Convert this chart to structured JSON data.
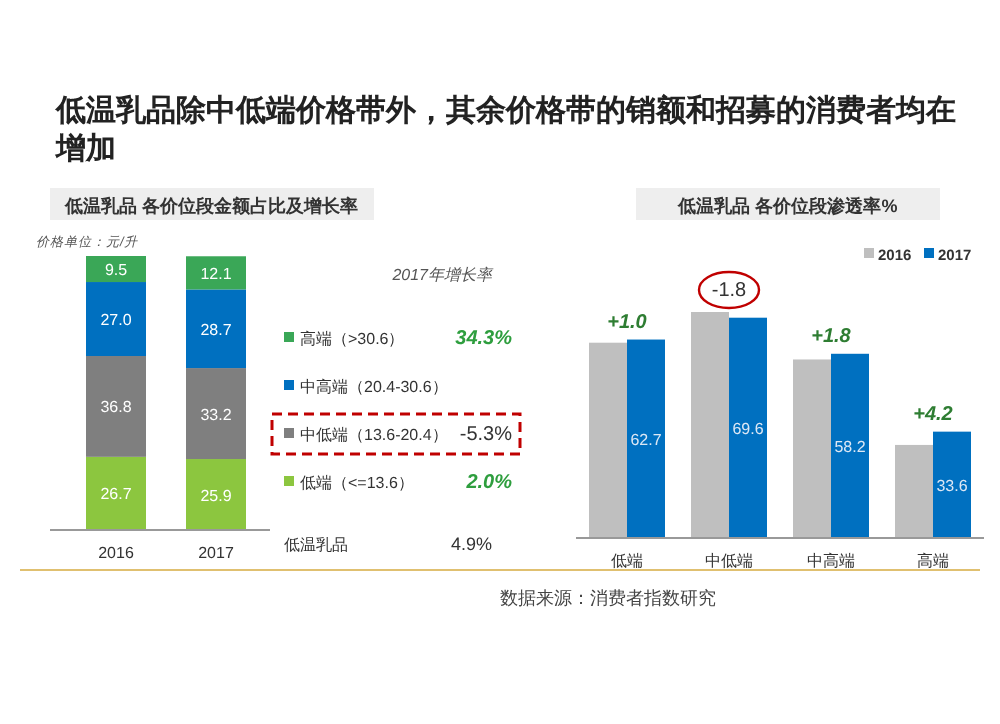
{
  "chart_data": [
    {
      "type": "other",
      "title": "低温乳品除中低端价格带外，其余价格带的销额和招募的消费者均在增加",
      "annotations": [
        "数据来源：消费者指数研究"
      ]
    },
    {
      "type": "bar",
      "stacked": true,
      "title": "低温乳品 各价位段金额占比及增长率",
      "categories": [
        "2016",
        "2017"
      ],
      "data_labels": true,
      "legend": "right",
      "series": [
        {
          "name": "低端（<=13.6）",
          "color": "#8cc63f",
          "values": [
            26.7,
            25.9
          ]
        },
        {
          "name": "中低端（13.6-20.4）",
          "color": "#7f7f7f",
          "values": [
            36.8,
            33.2
          ]
        },
        {
          "name": "中高端（20.4-30.6）",
          "color": "#0070c0",
          "values": [
            27.0,
            28.7
          ],
          "value_labels": [
            "27.0",
            "28.7"
          ]
        },
        {
          "name": "高端（>30.6）",
          "color": "#3aa757",
          "values": [
            9.5,
            12.1
          ]
        }
      ],
      "annotations": [
        "价格单位：元/升",
        "2017年增长率",
        "2.0%",
        "-5.3%",
        null,
        "34.3%",
        "低温乳品",
        "4.9%"
      ]
    },
    {
      "type": "bar",
      "title": "低温乳品 各价位段渗透率%",
      "categories": [
        "低端",
        "中低端",
        "中高端",
        "高端"
      ],
      "legend": "top right",
      "series": [
        {
          "name": "2016",
          "color": "#bfbfbf",
          "values": [
            61.7,
            71.4,
            56.4,
            29.4
          ]
        },
        {
          "name": "2017",
          "color": "#0070c0",
          "values": [
            62.7,
            69.6,
            58.2,
            33.6
          ],
          "value_labels": [
            "62.7",
            "69.6",
            "58.2",
            "33.6"
          ]
        }
      ],
      "annotations": [
        "+1.0",
        "-1.8",
        "+1.8",
        "+4.2"
      ]
    }
  ]
}
